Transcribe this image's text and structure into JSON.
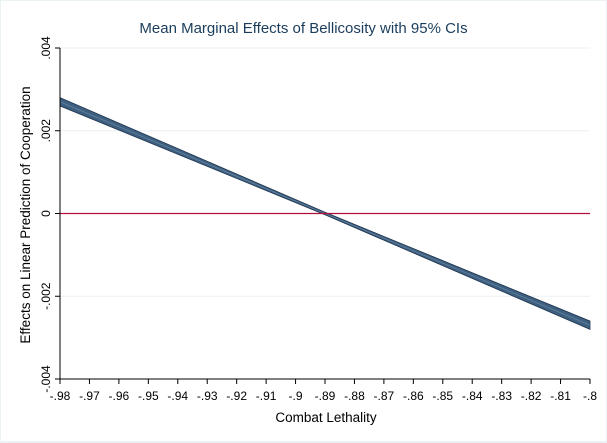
{
  "chart_data": {
    "type": "area",
    "title": "Mean Marginal Effects of Bellicosity with 95% CIs",
    "xlabel": "Combat Lethality",
    "ylabel": "Effects on Linear Prediction of Cooperation",
    "xlim": [
      -0.98,
      -0.8
    ],
    "ylim": [
      -0.004,
      0.004
    ],
    "x_ticks": [
      -0.98,
      -0.97,
      -0.96,
      -0.95,
      -0.94,
      -0.93,
      -0.92,
      -0.91,
      -0.9,
      -0.89,
      -0.88,
      -0.87,
      -0.86,
      -0.85,
      -0.84,
      -0.83,
      -0.82,
      -0.81,
      -0.8
    ],
    "x_tick_labels": [
      "-.98",
      "-.97",
      "-.96",
      "-.95",
      "-.94",
      "-.93",
      "-.92",
      "-.91",
      "-.9",
      "-.89",
      "-.88",
      "-.87",
      "-.86",
      "-.85",
      "-.84",
      "-.83",
      "-.82",
      "-.81",
      "-.8"
    ],
    "y_ticks": [
      -0.004,
      -0.002,
      0,
      0.002,
      0.004
    ],
    "y_tick_labels": [
      "-.004",
      "-.002",
      "0",
      ".002",
      ".004"
    ],
    "grid": true,
    "series": [
      {
        "kind": "confidence-band",
        "x": [
          -0.98,
          -0.89,
          -0.8
        ],
        "lower": [
          0.0026,
          -3e-05,
          -0.0028
        ],
        "upper": [
          0.0028,
          3e-05,
          -0.0026
        ],
        "color": "#3d5f80"
      }
    ],
    "reference_line": {
      "y": 0,
      "color": "#b0103c"
    }
  }
}
